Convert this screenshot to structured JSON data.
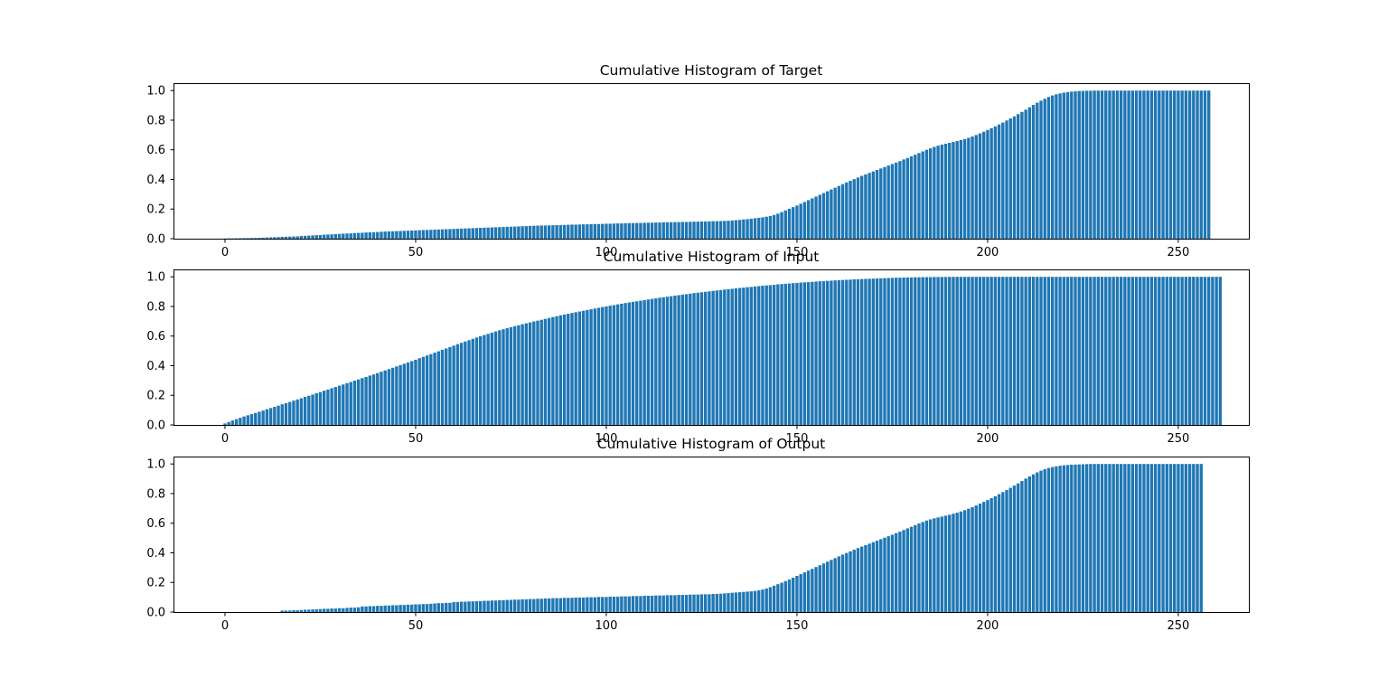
{
  "colors": {
    "bar": "#1f77b4",
    "axis": "#000000",
    "background": "#ffffff"
  },
  "chart_data": [
    {
      "type": "bar",
      "title": "Cumulative Histogram of Target",
      "xlabel": "",
      "ylabel": "",
      "xlim": [
        -13.5,
        268.5
      ],
      "ylim": [
        0,
        1.05
      ],
      "xticks": [
        0,
        50,
        100,
        150,
        200,
        250
      ],
      "yticks": [
        0.0,
        0.2,
        0.4,
        0.6,
        0.8,
        1.0
      ],
      "grid": false,
      "x_start": 0,
      "values": [
        0.001,
        0.002,
        0.002,
        0.003,
        0.003,
        0.004,
        0.004,
        0.005,
        0.005,
        0.006,
        0.007,
        0.008,
        0.009,
        0.01,
        0.011,
        0.012,
        0.013,
        0.014,
        0.015,
        0.016,
        0.018,
        0.019,
        0.021,
        0.022,
        0.024,
        0.025,
        0.027,
        0.028,
        0.029,
        0.031,
        0.032,
        0.034,
        0.035,
        0.036,
        0.038,
        0.039,
        0.04,
        0.042,
        0.043,
        0.044,
        0.045,
        0.047,
        0.048,
        0.049,
        0.05,
        0.051,
        0.052,
        0.053,
        0.054,
        0.055,
        0.056,
        0.057,
        0.058,
        0.059,
        0.06,
        0.061,
        0.062,
        0.063,
        0.064,
        0.065,
        0.066,
        0.067,
        0.068,
        0.069,
        0.07,
        0.071,
        0.072,
        0.073,
        0.074,
        0.075,
        0.076,
        0.077,
        0.078,
        0.079,
        0.08,
        0.081,
        0.082,
        0.083,
        0.084,
        0.085,
        0.086,
        0.087,
        0.088,
        0.089,
        0.089,
        0.09,
        0.091,
        0.092,
        0.092,
        0.093,
        0.094,
        0.095,
        0.095,
        0.096,
        0.097,
        0.097,
        0.098,
        0.099,
        0.099,
        0.1,
        0.101,
        0.101,
        0.102,
        0.103,
        0.103,
        0.104,
        0.105,
        0.105,
        0.106,
        0.106,
        0.107,
        0.108,
        0.108,
        0.109,
        0.109,
        0.11,
        0.111,
        0.111,
        0.112,
        0.112,
        0.113,
        0.113,
        0.114,
        0.115,
        0.115,
        0.116,
        0.116,
        0.117,
        0.118,
        0.118,
        0.119,
        0.12,
        0.121,
        0.123,
        0.125,
        0.127,
        0.13,
        0.132,
        0.135,
        0.138,
        0.141,
        0.144,
        0.148,
        0.153,
        0.16,
        0.169,
        0.18,
        0.191,
        0.202,
        0.213,
        0.224,
        0.236,
        0.248,
        0.26,
        0.272,
        0.284,
        0.296,
        0.308,
        0.32,
        0.332,
        0.344,
        0.356,
        0.368,
        0.38,
        0.391,
        0.402,
        0.413,
        0.424,
        0.434,
        0.444,
        0.454,
        0.464,
        0.474,
        0.484,
        0.494,
        0.504,
        0.514,
        0.524,
        0.535,
        0.545,
        0.556,
        0.567,
        0.578,
        0.589,
        0.6,
        0.61,
        0.62,
        0.628,
        0.635,
        0.641,
        0.647,
        0.653,
        0.659,
        0.666,
        0.673,
        0.681,
        0.69,
        0.7,
        0.711,
        0.722,
        0.734,
        0.746,
        0.758,
        0.771,
        0.784,
        0.798,
        0.812,
        0.826,
        0.841,
        0.856,
        0.871,
        0.887,
        0.903,
        0.918,
        0.932,
        0.945,
        0.957,
        0.967,
        0.975,
        0.981,
        0.986,
        0.99,
        0.993,
        0.995,
        0.997,
        0.998,
        0.999,
        0.999,
        1.0,
        1.0,
        1.0,
        1.0,
        1.0,
        1.0,
        1.0,
        1.0,
        1.0,
        1.0,
        1.0,
        1.0,
        1.0,
        1.0,
        1.0,
        1.0,
        1.0,
        1.0,
        1.0,
        1.0,
        1.0,
        1.0,
        1.0,
        1.0,
        1.0,
        1.0,
        1.0,
        1.0,
        1.0,
        1.0,
        1.0
      ]
    },
    {
      "type": "bar",
      "title": "Cumulative Histogram of Input",
      "xlabel": "",
      "ylabel": "",
      "xlim": [
        -13.5,
        268.5
      ],
      "ylim": [
        0,
        1.05
      ],
      "xticks": [
        0,
        50,
        100,
        150,
        200,
        250
      ],
      "yticks": [
        0.0,
        0.2,
        0.4,
        0.6,
        0.8,
        1.0
      ],
      "grid": false,
      "x_start": 0,
      "values": [
        0.01,
        0.02,
        0.03,
        0.039,
        0.048,
        0.057,
        0.065,
        0.073,
        0.081,
        0.089,
        0.097,
        0.106,
        0.114,
        0.122,
        0.13,
        0.139,
        0.147,
        0.155,
        0.164,
        0.172,
        0.18,
        0.189,
        0.197,
        0.205,
        0.214,
        0.222,
        0.231,
        0.239,
        0.248,
        0.256,
        0.265,
        0.273,
        0.282,
        0.29,
        0.299,
        0.307,
        0.316,
        0.324,
        0.333,
        0.341,
        0.35,
        0.359,
        0.368,
        0.377,
        0.386,
        0.395,
        0.404,
        0.413,
        0.422,
        0.431,
        0.44,
        0.45,
        0.459,
        0.469,
        0.478,
        0.488,
        0.497,
        0.507,
        0.516,
        0.526,
        0.535,
        0.545,
        0.554,
        0.563,
        0.572,
        0.581,
        0.59,
        0.599,
        0.607,
        0.615,
        0.623,
        0.631,
        0.639,
        0.646,
        0.653,
        0.66,
        0.667,
        0.673,
        0.68,
        0.686,
        0.692,
        0.698,
        0.704,
        0.71,
        0.716,
        0.722,
        0.728,
        0.734,
        0.74,
        0.745,
        0.75,
        0.756,
        0.761,
        0.766,
        0.771,
        0.776,
        0.781,
        0.786,
        0.791,
        0.796,
        0.8,
        0.805,
        0.809,
        0.814,
        0.818,
        0.823,
        0.827,
        0.831,
        0.835,
        0.839,
        0.843,
        0.847,
        0.851,
        0.855,
        0.859,
        0.862,
        0.866,
        0.869,
        0.873,
        0.876,
        0.88,
        0.883,
        0.886,
        0.89,
        0.893,
        0.896,
        0.899,
        0.902,
        0.905,
        0.908,
        0.911,
        0.914,
        0.917,
        0.919,
        0.922,
        0.925,
        0.927,
        0.93,
        0.932,
        0.935,
        0.937,
        0.94,
        0.942,
        0.944,
        0.946,
        0.949,
        0.951,
        0.953,
        0.955,
        0.957,
        0.959,
        0.961,
        0.963,
        0.964,
        0.966,
        0.968,
        0.97,
        0.971,
        0.973,
        0.974,
        0.976,
        0.977,
        0.979,
        0.98,
        0.981,
        0.983,
        0.984,
        0.985,
        0.986,
        0.987,
        0.988,
        0.989,
        0.99,
        0.991,
        0.992,
        0.993,
        0.994,
        0.994,
        0.995,
        0.996,
        0.996,
        0.997,
        0.997,
        0.998,
        0.998,
        0.998,
        0.999,
        0.999,
        0.999,
        0.999,
        1.0,
        1.0,
        1.0,
        1.0,
        1.0,
        1.0,
        1.0,
        1.0,
        1.0,
        1.0,
        1.0,
        1.0,
        1.0,
        1.0,
        1.0,
        1.0,
        1.0,
        1.0,
        1.0,
        1.0,
        1.0,
        1.0,
        1.0,
        1.0,
        1.0,
        1.0,
        1.0,
        1.0,
        1.0,
        1.0,
        1.0,
        1.0,
        1.0,
        1.0,
        1.0,
        1.0,
        1.0,
        1.0,
        1.0,
        1.0,
        1.0,
        1.0,
        1.0,
        1.0,
        1.0,
        1.0,
        1.0,
        1.0,
        1.0,
        1.0,
        1.0,
        1.0,
        1.0,
        1.0,
        1.0,
        1.0,
        1.0,
        1.0,
        1.0,
        1.0,
        1.0,
        1.0,
        1.0,
        1.0,
        1.0,
        1.0,
        1.0,
        1.0,
        1.0,
        1.0,
        1.0,
        1.0
      ]
    },
    {
      "type": "bar",
      "title": "Cumulative Histogram of Output",
      "xlabel": "",
      "ylabel": "",
      "xlim": [
        -13.5,
        268.5
      ],
      "ylim": [
        0,
        1.05
      ],
      "xticks": [
        0,
        50,
        100,
        150,
        200,
        250
      ],
      "yticks": [
        0.0,
        0.2,
        0.4,
        0.6,
        0.8,
        1.0
      ],
      "grid": false,
      "x_start": 0,
      "values": [
        0,
        0,
        0,
        0,
        0,
        0,
        0,
        0,
        0,
        0,
        0,
        0,
        0,
        0,
        0,
        0.01,
        0.01,
        0.01,
        0.012,
        0.012,
        0.014,
        0.016,
        0.016,
        0.018,
        0.018,
        0.02,
        0.022,
        0.022,
        0.024,
        0.024,
        0.026,
        0.026,
        0.028,
        0.03,
        0.03,
        0.032,
        0.038,
        0.038,
        0.04,
        0.04,
        0.042,
        0.042,
        0.044,
        0.044,
        0.046,
        0.046,
        0.048,
        0.048,
        0.05,
        0.05,
        0.052,
        0.052,
        0.054,
        0.054,
        0.056,
        0.058,
        0.06,
        0.06,
        0.062,
        0.062,
        0.068,
        0.068,
        0.07,
        0.07,
        0.072,
        0.072,
        0.074,
        0.074,
        0.076,
        0.076,
        0.078,
        0.078,
        0.08,
        0.08,
        0.082,
        0.082,
        0.084,
        0.084,
        0.086,
        0.086,
        0.088,
        0.088,
        0.09,
        0.09,
        0.092,
        0.092,
        0.094,
        0.094,
        0.094,
        0.096,
        0.096,
        0.096,
        0.098,
        0.098,
        0.098,
        0.1,
        0.1,
        0.1,
        0.102,
        0.102,
        0.102,
        0.104,
        0.104,
        0.104,
        0.106,
        0.106,
        0.106,
        0.108,
        0.108,
        0.108,
        0.11,
        0.11,
        0.11,
        0.112,
        0.112,
        0.112,
        0.114,
        0.114,
        0.114,
        0.116,
        0.116,
        0.116,
        0.118,
        0.118,
        0.118,
        0.12,
        0.12,
        0.12,
        0.122,
        0.122,
        0.124,
        0.126,
        0.128,
        0.13,
        0.132,
        0.134,
        0.136,
        0.138,
        0.14,
        0.143,
        0.147,
        0.152,
        0.159,
        0.168,
        0.178,
        0.188,
        0.198,
        0.209,
        0.22,
        0.232,
        0.244,
        0.256,
        0.268,
        0.28,
        0.292,
        0.304,
        0.316,
        0.328,
        0.34,
        0.352,
        0.364,
        0.376,
        0.388,
        0.399,
        0.41,
        0.421,
        0.432,
        0.442,
        0.452,
        0.462,
        0.472,
        0.482,
        0.492,
        0.502,
        0.512,
        0.522,
        0.533,
        0.543,
        0.554,
        0.565,
        0.576,
        0.587,
        0.598,
        0.608,
        0.618,
        0.626,
        0.633,
        0.639,
        0.645,
        0.651,
        0.657,
        0.664,
        0.671,
        0.679,
        0.688,
        0.698,
        0.709,
        0.72,
        0.732,
        0.744,
        0.756,
        0.769,
        0.782,
        0.796,
        0.81,
        0.824,
        0.839,
        0.854,
        0.869,
        0.885,
        0.901,
        0.916,
        0.93,
        0.943,
        0.955,
        0.965,
        0.973,
        0.979,
        0.984,
        0.988,
        0.991,
        0.993,
        0.995,
        0.996,
        0.997,
        0.998,
        0.999,
        1.0,
        1.0,
        1.0,
        1.0,
        1.0,
        1.0,
        1.0,
        1.0,
        1.0,
        1.0,
        1.0,
        1.0,
        1.0,
        1.0,
        1.0,
        1.0,
        1.0,
        1.0,
        1.0,
        1.0,
        1.0,
        1.0,
        1.0,
        1.0,
        1.0,
        1.0,
        1.0,
        1.0,
        1.0,
        1.0
      ]
    }
  ]
}
